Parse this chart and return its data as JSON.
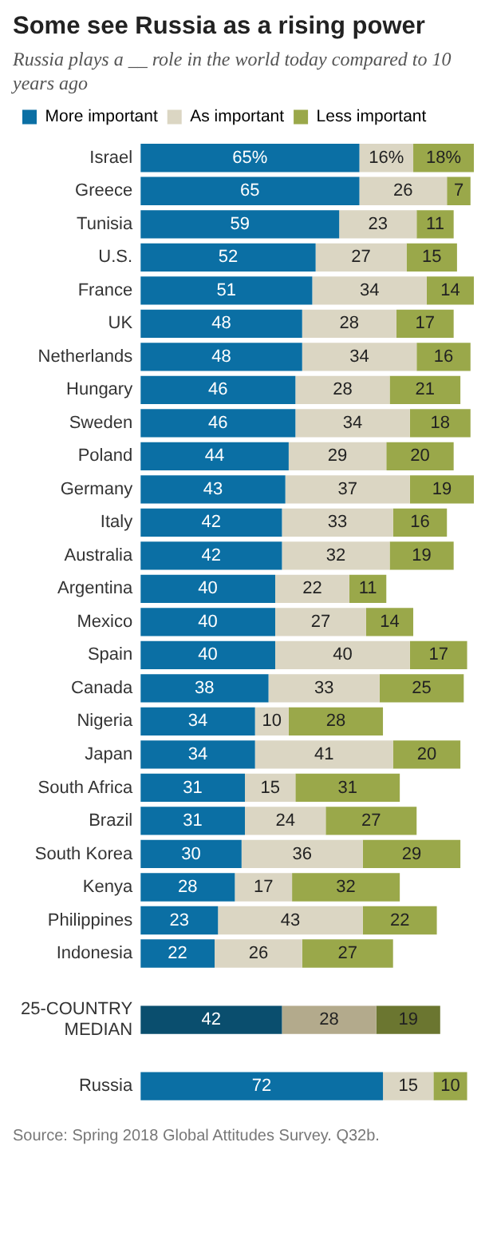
{
  "chart_data": {
    "type": "bar",
    "orientation": "horizontal",
    "stacked": true,
    "title": "Some see Russia as a rising power",
    "subtitle": "Russia plays a __ role in the world today compared to 10 years ago",
    "legend": "top",
    "grid": false,
    "categories": [
      "Israel",
      "Greece",
      "Tunisia",
      "U.S.",
      "France",
      "UK",
      "Netherlands",
      "Hungary",
      "Sweden",
      "Poland",
      "Germany",
      "Italy",
      "Australia",
      "Argentina",
      "Mexico",
      "Spain",
      "Canada",
      "Nigeria",
      "Japan",
      "South Africa",
      "Brazil",
      "South Korea",
      "Kenya",
      "Philippines",
      "Indonesia",
      null,
      "25-COUNTRY MEDIAN",
      null,
      "Russia"
    ],
    "series": [
      {
        "name": "More important",
        "color": "#0b6fa4",
        "colors": [
          "#0b6fa4",
          "#0b6fa4",
          "#0b6fa4",
          "#0b6fa4",
          "#0b6fa4",
          "#0b6fa4",
          "#0b6fa4",
          "#0b6fa4",
          "#0b6fa4",
          "#0b6fa4",
          "#0b6fa4",
          "#0b6fa4",
          "#0b6fa4",
          "#0b6fa4",
          "#0b6fa4",
          "#0b6fa4",
          "#0b6fa4",
          "#0b6fa4",
          "#0b6fa4",
          "#0b6fa4",
          "#0b6fa4",
          "#0b6fa4",
          "#0b6fa4",
          "#0b6fa4",
          "#0b6fa4",
          "#0b6fa4",
          "#0a4e6e",
          "#0b6fa4",
          "#0b6fa4"
        ],
        "values": [
          65,
          65,
          59,
          52,
          51,
          48,
          48,
          46,
          46,
          44,
          43,
          42,
          42,
          40,
          40,
          40,
          38,
          34,
          34,
          31,
          31,
          30,
          28,
          23,
          22,
          null,
          42,
          null,
          72
        ],
        "value_labels": [
          "65%",
          "65",
          "59",
          "52",
          "51",
          "48",
          "48",
          "46",
          "46",
          "44",
          "43",
          "42",
          "42",
          "40",
          "40",
          "40",
          "38",
          "34",
          "34",
          "31",
          "31",
          "30",
          "28",
          "23",
          "22",
          null,
          "42",
          null,
          "72"
        ]
      },
      {
        "name": "As important",
        "color": "#dbd6c3",
        "colors": [
          "#dbd6c3",
          "#dbd6c3",
          "#dbd6c3",
          "#dbd6c3",
          "#dbd6c3",
          "#dbd6c3",
          "#dbd6c3",
          "#dbd6c3",
          "#dbd6c3",
          "#dbd6c3",
          "#dbd6c3",
          "#dbd6c3",
          "#dbd6c3",
          "#dbd6c3",
          "#dbd6c3",
          "#dbd6c3",
          "#dbd6c3",
          "#dbd6c3",
          "#dbd6c3",
          "#dbd6c3",
          "#dbd6c3",
          "#dbd6c3",
          "#dbd6c3",
          "#dbd6c3",
          "#dbd6c3",
          "#dbd6c3",
          "#b3aa8c",
          "#dbd6c3",
          "#dbd6c3"
        ],
        "values": [
          16,
          26,
          23,
          27,
          34,
          28,
          34,
          28,
          34,
          29,
          37,
          33,
          32,
          22,
          27,
          40,
          33,
          10,
          41,
          15,
          24,
          36,
          17,
          43,
          26,
          null,
          28,
          null,
          15
        ],
        "value_labels": [
          "16%",
          "26",
          "23",
          "27",
          "34",
          "28",
          "34",
          "28",
          "34",
          "29",
          "37",
          "33",
          "32",
          "22",
          "27",
          "40",
          "33",
          "10",
          "41",
          "15",
          "24",
          "36",
          "17",
          "43",
          "26",
          null,
          "28",
          null,
          "15"
        ]
      },
      {
        "name": "Less important",
        "color": "#9aa84a",
        "colors": [
          "#9aa84a",
          "#9aa84a",
          "#9aa84a",
          "#9aa84a",
          "#9aa84a",
          "#9aa84a",
          "#9aa84a",
          "#9aa84a",
          "#9aa84a",
          "#9aa84a",
          "#9aa84a",
          "#9aa84a",
          "#9aa84a",
          "#9aa84a",
          "#9aa84a",
          "#9aa84a",
          "#9aa84a",
          "#9aa84a",
          "#9aa84a",
          "#9aa84a",
          "#9aa84a",
          "#9aa84a",
          "#9aa84a",
          "#9aa84a",
          "#9aa84a",
          "#9aa84a",
          "#6b7630",
          "#9aa84a",
          "#9aa84a"
        ],
        "values": [
          18,
          7,
          11,
          15,
          14,
          17,
          16,
          21,
          18,
          20,
          19,
          16,
          19,
          11,
          14,
          17,
          25,
          28,
          20,
          31,
          27,
          29,
          32,
          22,
          27,
          null,
          19,
          null,
          10
        ],
        "value_labels": [
          "18%",
          "7",
          "11",
          "15",
          "14",
          "17",
          "16",
          "21",
          "18",
          "20",
          "19",
          "16",
          "19",
          "11",
          "14",
          "17",
          "25",
          "28",
          "20",
          "31",
          "27",
          "29",
          "32",
          "22",
          "27",
          null,
          "19",
          null,
          "10"
        ]
      }
    ],
    "annotations": [
      "Source: Spring 2018 Global Attitudes Survey. Q32b."
    ]
  }
}
